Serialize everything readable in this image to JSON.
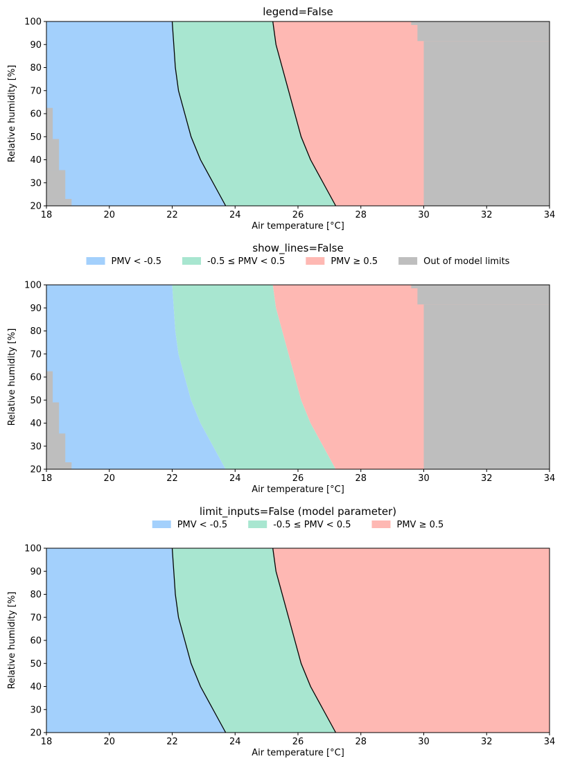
{
  "colors": {
    "blue": "#a3d0fc",
    "green": "#a8e6d0",
    "red": "#feb8b3",
    "gray": "#bebebe",
    "line": "#000000"
  },
  "chart_data": [
    {
      "type": "area",
      "title": "legend=False",
      "xlabel": "Air temperature [°C]",
      "ylabel": "Relative humidity [%]",
      "xlim": [
        18,
        34
      ],
      "ylim": [
        20,
        100
      ],
      "xticks": [
        "18",
        "20",
        "22",
        "24",
        "26",
        "28",
        "30",
        "32",
        "34"
      ],
      "yticks": [
        "20",
        "30",
        "40",
        "50",
        "60",
        "70",
        "80",
        "90",
        "100"
      ],
      "legend": false,
      "show_lines": true,
      "limit_inputs": true,
      "boundaries": {
        "rh": [
          20,
          30,
          40,
          50,
          60,
          70,
          80,
          90,
          100
        ],
        "pmv_minus_0_5": [
          23.7,
          23.3,
          22.9,
          22.6,
          22.4,
          22.2,
          22.1,
          22.05,
          22.0
        ],
        "pmv_plus_0_5": [
          27.2,
          26.8,
          26.4,
          26.1,
          25.9,
          25.7,
          25.5,
          25.3,
          25.2
        ]
      },
      "out_of_limits": {
        "low_temperature_steps": [
          {
            "rh_from": 20,
            "rh_to": 23,
            "t_max": 18.8
          },
          {
            "rh_from": 23,
            "rh_to": 35.5,
            "t_max": 18.6
          },
          {
            "rh_from": 35.5,
            "rh_to": 49,
            "t_max": 18.4
          },
          {
            "rh_from": 49,
            "rh_to": 62.5,
            "t_max": 18.2
          }
        ],
        "high_temperature_steps": [
          {
            "rh_from": 20,
            "rh_to": 91.5,
            "t_min": 30.0
          },
          {
            "rh_from": 91.5,
            "rh_to": 98.5,
            "t_min": 29.8
          },
          {
            "rh_from": 98.5,
            "rh_to": 100,
            "t_min": 29.6
          }
        ]
      },
      "legend_entries": []
    },
    {
      "type": "area",
      "title": "show_lines=False",
      "xlabel": "Air temperature [°C]",
      "ylabel": "Relative humidity [%]",
      "xlim": [
        18,
        34
      ],
      "ylim": [
        20,
        100
      ],
      "xticks": [
        "18",
        "20",
        "22",
        "24",
        "26",
        "28",
        "30",
        "32",
        "34"
      ],
      "yticks": [
        "20",
        "30",
        "40",
        "50",
        "60",
        "70",
        "80",
        "90",
        "100"
      ],
      "legend": "top",
      "show_lines": false,
      "limit_inputs": true,
      "boundaries": {
        "rh": [
          20,
          30,
          40,
          50,
          60,
          70,
          80,
          90,
          100
        ],
        "pmv_minus_0_5": [
          23.7,
          23.3,
          22.9,
          22.6,
          22.4,
          22.2,
          22.1,
          22.05,
          22.0
        ],
        "pmv_plus_0_5": [
          27.2,
          26.8,
          26.4,
          26.1,
          25.9,
          25.7,
          25.5,
          25.3,
          25.2
        ]
      },
      "out_of_limits": {
        "low_temperature_steps": [
          {
            "rh_from": 20,
            "rh_to": 23,
            "t_max": 18.8
          },
          {
            "rh_from": 23,
            "rh_to": 35.5,
            "t_max": 18.6
          },
          {
            "rh_from": 35.5,
            "rh_to": 49,
            "t_max": 18.4
          },
          {
            "rh_from": 49,
            "rh_to": 62.5,
            "t_max": 18.2
          }
        ],
        "high_temperature_steps": [
          {
            "rh_from": 20,
            "rh_to": 91.5,
            "t_min": 30.0
          },
          {
            "rh_from": 91.5,
            "rh_to": 98.5,
            "t_min": 29.8
          },
          {
            "rh_from": 98.5,
            "rh_to": 100,
            "t_min": 29.6
          }
        ]
      },
      "legend_entries": [
        {
          "label": "PMV < -0.5",
          "color": "#a3d0fc"
        },
        {
          "label": "-0.5 ≤ PMV < 0.5",
          "color": "#a8e6d0"
        },
        {
          "label": "PMV ≥ 0.5",
          "color": "#feb8b3"
        },
        {
          "label": "Out of model limits",
          "color": "#bebebe"
        }
      ]
    },
    {
      "type": "area",
      "title": "limit_inputs=False (model parameter)",
      "xlabel": "Air temperature [°C]",
      "ylabel": "Relative humidity [%]",
      "xlim": [
        18,
        34
      ],
      "ylim": [
        20,
        100
      ],
      "xticks": [
        "18",
        "20",
        "22",
        "24",
        "26",
        "28",
        "30",
        "32",
        "34"
      ],
      "yticks": [
        "20",
        "30",
        "40",
        "50",
        "60",
        "70",
        "80",
        "90",
        "100"
      ],
      "legend": "top",
      "show_lines": true,
      "limit_inputs": false,
      "boundaries": {
        "rh": [
          20,
          30,
          40,
          50,
          60,
          70,
          80,
          90,
          100
        ],
        "pmv_minus_0_5": [
          23.7,
          23.3,
          22.9,
          22.6,
          22.4,
          22.2,
          22.1,
          22.05,
          22.0
        ],
        "pmv_plus_0_5": [
          27.2,
          26.8,
          26.4,
          26.1,
          25.9,
          25.7,
          25.5,
          25.3,
          25.2
        ]
      },
      "out_of_limits": null,
      "legend_entries": [
        {
          "label": "PMV < -0.5",
          "color": "#a3d0fc"
        },
        {
          "label": "-0.5 ≤ PMV < 0.5",
          "color": "#a8e6d0"
        },
        {
          "label": "PMV ≥ 0.5",
          "color": "#feb8b3"
        }
      ]
    }
  ]
}
